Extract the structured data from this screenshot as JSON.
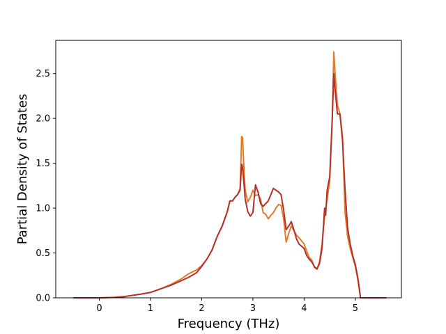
{
  "chart_data": {
    "type": "line",
    "title": "",
    "xlabel": "Frequency (THz)",
    "ylabel": "Partial Density of States",
    "xlim": [
      -0.85,
      5.9
    ],
    "ylim": [
      0.0,
      2.87
    ],
    "xticks": [
      "0",
      "1",
      "2",
      "3",
      "4",
      "5"
    ],
    "yticks": [
      "0.0",
      "0.5",
      "1.0",
      "1.5",
      "2.0",
      "2.5"
    ],
    "grid": false,
    "legend": "none",
    "series": [
      {
        "color": "#e07b29",
        "points": [
          [
            -0.5,
            0.0
          ],
          [
            0.0,
            0.0
          ],
          [
            0.3,
            0.005
          ],
          [
            0.5,
            0.015
          ],
          [
            0.8,
            0.04
          ],
          [
            1.0,
            0.06
          ],
          [
            1.2,
            0.1
          ],
          [
            1.4,
            0.15
          ],
          [
            1.6,
            0.21
          ],
          [
            1.75,
            0.27
          ],
          [
            1.9,
            0.31
          ],
          [
            2.0,
            0.36
          ],
          [
            2.1,
            0.43
          ],
          [
            2.2,
            0.53
          ],
          [
            2.3,
            0.68
          ],
          [
            2.4,
            0.8
          ],
          [
            2.5,
            0.96
          ],
          [
            2.55,
            1.08
          ],
          [
            2.6,
            1.08
          ],
          [
            2.65,
            1.12
          ],
          [
            2.7,
            1.15
          ],
          [
            2.75,
            1.22
          ],
          [
            2.78,
            1.8
          ],
          [
            2.8,
            1.78
          ],
          [
            2.82,
            1.5
          ],
          [
            2.85,
            1.2
          ],
          [
            2.9,
            1.07
          ],
          [
            2.95,
            1.12
          ],
          [
            3.0,
            1.2
          ],
          [
            3.05,
            1.14
          ],
          [
            3.1,
            1.15
          ],
          [
            3.15,
            1.1
          ],
          [
            3.2,
            0.95
          ],
          [
            3.25,
            0.93
          ],
          [
            3.3,
            0.88
          ],
          [
            3.35,
            0.92
          ],
          [
            3.4,
            0.95
          ],
          [
            3.45,
            1.0
          ],
          [
            3.5,
            1.04
          ],
          [
            3.55,
            1.03
          ],
          [
            3.6,
            0.88
          ],
          [
            3.65,
            0.62
          ],
          [
            3.7,
            0.72
          ],
          [
            3.75,
            0.8
          ],
          [
            3.8,
            0.75
          ],
          [
            3.85,
            0.7
          ],
          [
            3.9,
            0.67
          ],
          [
            4.0,
            0.6
          ],
          [
            4.05,
            0.52
          ],
          [
            4.1,
            0.45
          ],
          [
            4.15,
            0.42
          ],
          [
            4.2,
            0.34
          ],
          [
            4.25,
            0.32
          ],
          [
            4.3,
            0.4
          ],
          [
            4.35,
            0.6
          ],
          [
            4.4,
            0.9
          ],
          [
            4.45,
            1.1
          ],
          [
            4.5,
            1.3
          ],
          [
            4.55,
            2.0
          ],
          [
            4.58,
            2.74
          ],
          [
            4.6,
            2.55
          ],
          [
            4.65,
            2.15
          ],
          [
            4.7,
            2.05
          ],
          [
            4.75,
            1.8
          ],
          [
            4.8,
            0.95
          ],
          [
            4.85,
            0.68
          ],
          [
            4.9,
            0.55
          ],
          [
            4.95,
            0.45
          ],
          [
            5.0,
            0.35
          ],
          [
            5.05,
            0.2
          ],
          [
            5.08,
            0.08
          ],
          [
            5.1,
            0.0
          ],
          [
            5.6,
            0.0
          ]
        ]
      },
      {
        "color": "#b5302a",
        "points": [
          [
            -0.5,
            0.0
          ],
          [
            0.0,
            0.0
          ],
          [
            0.3,
            0.005
          ],
          [
            0.5,
            0.015
          ],
          [
            0.8,
            0.04
          ],
          [
            1.0,
            0.06
          ],
          [
            1.2,
            0.1
          ],
          [
            1.4,
            0.14
          ],
          [
            1.6,
            0.19
          ],
          [
            1.75,
            0.23
          ],
          [
            1.9,
            0.28
          ],
          [
            2.0,
            0.35
          ],
          [
            2.1,
            0.43
          ],
          [
            2.2,
            0.53
          ],
          [
            2.3,
            0.68
          ],
          [
            2.4,
            0.8
          ],
          [
            2.5,
            0.96
          ],
          [
            2.55,
            1.08
          ],
          [
            2.6,
            1.08
          ],
          [
            2.65,
            1.12
          ],
          [
            2.7,
            1.15
          ],
          [
            2.75,
            1.2
          ],
          [
            2.78,
            1.49
          ],
          [
            2.8,
            1.45
          ],
          [
            2.85,
            1.1
          ],
          [
            2.9,
            0.96
          ],
          [
            2.95,
            0.91
          ],
          [
            3.0,
            0.95
          ],
          [
            3.05,
            1.26
          ],
          [
            3.1,
            1.18
          ],
          [
            3.15,
            1.05
          ],
          [
            3.2,
            1.02
          ],
          [
            3.25,
            1.05
          ],
          [
            3.3,
            1.08
          ],
          [
            3.35,
            1.15
          ],
          [
            3.4,
            1.22
          ],
          [
            3.45,
            1.2
          ],
          [
            3.5,
            1.18
          ],
          [
            3.55,
            1.15
          ],
          [
            3.6,
            0.98
          ],
          [
            3.65,
            0.76
          ],
          [
            3.7,
            0.8
          ],
          [
            3.75,
            0.85
          ],
          [
            3.8,
            0.76
          ],
          [
            3.85,
            0.66
          ],
          [
            3.9,
            0.6
          ],
          [
            4.0,
            0.55
          ],
          [
            4.05,
            0.47
          ],
          [
            4.1,
            0.43
          ],
          [
            4.15,
            0.4
          ],
          [
            4.2,
            0.35
          ],
          [
            4.25,
            0.32
          ],
          [
            4.3,
            0.38
          ],
          [
            4.35,
            0.55
          ],
          [
            4.4,
            1.0
          ],
          [
            4.42,
            0.92
          ],
          [
            4.45,
            1.2
          ],
          [
            4.5,
            1.35
          ],
          [
            4.55,
            2.0
          ],
          [
            4.58,
            2.5
          ],
          [
            4.6,
            2.35
          ],
          [
            4.65,
            2.05
          ],
          [
            4.7,
            2.05
          ],
          [
            4.75,
            1.75
          ],
          [
            4.8,
            1.2
          ],
          [
            4.85,
            0.78
          ],
          [
            4.9,
            0.6
          ],
          [
            4.95,
            0.47
          ],
          [
            5.0,
            0.37
          ],
          [
            5.05,
            0.22
          ],
          [
            5.08,
            0.1
          ],
          [
            5.1,
            0.0
          ],
          [
            5.6,
            0.0
          ]
        ]
      }
    ]
  }
}
